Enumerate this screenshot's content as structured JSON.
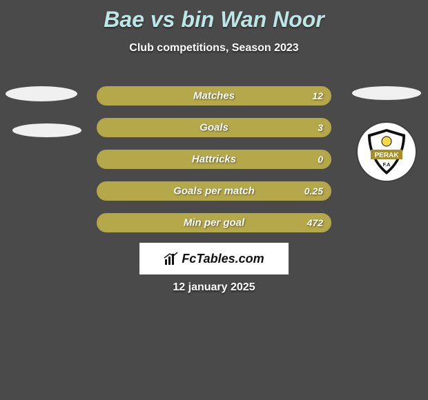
{
  "title": "Bae vs bin Wan Noor",
  "subtitle": "Club competitions, Season 2023",
  "title_color": "#bfe6e6",
  "bg_color": "#4a4a4a",
  "bar_bg": "#9a8a2a",
  "bar_border": "#b5a84a",
  "bar_fill": "#b5a84a",
  "text_color": "#ffffff",
  "stats": [
    {
      "label": "Matches",
      "value": "12",
      "fill_pct": 100
    },
    {
      "label": "Goals",
      "value": "3",
      "fill_pct": 100
    },
    {
      "label": "Hattricks",
      "value": "0",
      "fill_pct": 100
    },
    {
      "label": "Goals per match",
      "value": "0.25",
      "fill_pct": 100
    },
    {
      "label": "Min per goal",
      "value": "472",
      "fill_pct": 100
    }
  ],
  "brand": "FcTables.com",
  "date": "12 january 2025",
  "badge": {
    "bg": "#ffffff",
    "shield_outer": "#0f0f0f",
    "shield_inner": "#ffffff",
    "shield_band": "#a58f2d",
    "text": "PERAK",
    "text_sub": "F.A"
  }
}
